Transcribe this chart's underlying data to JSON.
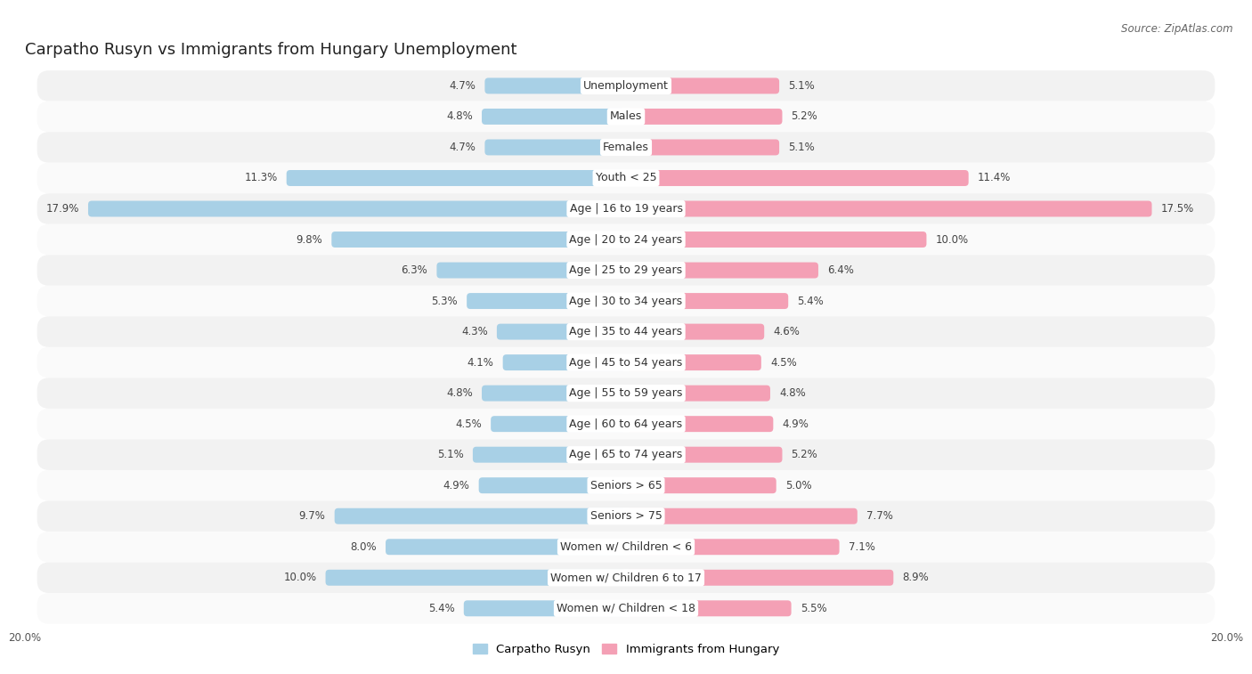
{
  "title": "Carpatho Rusyn vs Immigrants from Hungary Unemployment",
  "source": "Source: ZipAtlas.com",
  "categories": [
    "Unemployment",
    "Males",
    "Females",
    "Youth < 25",
    "Age | 16 to 19 years",
    "Age | 20 to 24 years",
    "Age | 25 to 29 years",
    "Age | 30 to 34 years",
    "Age | 35 to 44 years",
    "Age | 45 to 54 years",
    "Age | 55 to 59 years",
    "Age | 60 to 64 years",
    "Age | 65 to 74 years",
    "Seniors > 65",
    "Seniors > 75",
    "Women w/ Children < 6",
    "Women w/ Children 6 to 17",
    "Women w/ Children < 18"
  ],
  "left_values": [
    4.7,
    4.8,
    4.7,
    11.3,
    17.9,
    9.8,
    6.3,
    5.3,
    4.3,
    4.1,
    4.8,
    4.5,
    5.1,
    4.9,
    9.7,
    8.0,
    10.0,
    5.4
  ],
  "right_values": [
    5.1,
    5.2,
    5.1,
    11.4,
    17.5,
    10.0,
    6.4,
    5.4,
    4.6,
    4.5,
    4.8,
    4.9,
    5.2,
    5.0,
    7.7,
    7.1,
    8.9,
    5.5
  ],
  "left_color": "#a8d0e6",
  "right_color": "#f4a0b5",
  "bar_height": 0.52,
  "xlim": 20.0,
  "background_color": "#ffffff",
  "row_bg_even": "#f2f2f2",
  "row_bg_odd": "#fafafa",
  "legend_left": "Carpatho Rusyn",
  "legend_right": "Immigrants from Hungary",
  "title_fontsize": 13,
  "label_fontsize": 9,
  "value_fontsize": 8.5,
  "source_fontsize": 8.5
}
